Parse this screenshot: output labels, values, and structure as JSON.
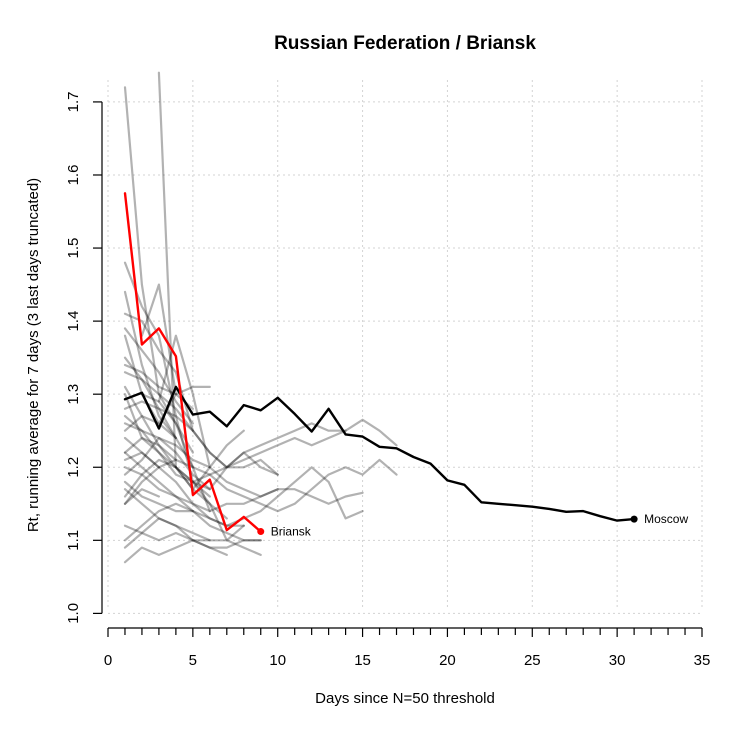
{
  "chart_data": {
    "type": "line",
    "title": "Russian Federation / Briansk",
    "xlabel": "Days since N=50 threshold",
    "ylabel": "Rt, running average for 7 days (3 last days truncated)",
    "xlim": [
      0,
      35
    ],
    "ylim": [
      0.98,
      1.73
    ],
    "x_ticks": [
      "0",
      "5",
      "10",
      "15",
      "20",
      "25",
      "30",
      "35"
    ],
    "y_ticks": [
      "1.0",
      "1.1",
      "1.2",
      "1.3",
      "1.4",
      "1.5",
      "1.6",
      "1.7"
    ],
    "grid": true,
    "highlight_series": [
      {
        "name": "Briansk",
        "color": "#ff0000",
        "x": [
          1,
          2,
          3,
          4,
          5,
          6,
          7,
          8,
          9
        ],
        "y": [
          1.575,
          1.368,
          1.39,
          1.352,
          1.162,
          1.183,
          1.114,
          1.132,
          1.112
        ]
      },
      {
        "name": "Moscow",
        "color": "#000000",
        "x": [
          1,
          2,
          3,
          4,
          5,
          6,
          7,
          8,
          9,
          10,
          11,
          12,
          13,
          14,
          15,
          16,
          17,
          18,
          19,
          20,
          21,
          22,
          23,
          24,
          25,
          26,
          27,
          28,
          29,
          30,
          31
        ],
        "y": [
          1.293,
          1.302,
          1.253,
          1.31,
          1.272,
          1.276,
          1.256,
          1.285,
          1.278,
          1.295,
          1.273,
          1.249,
          1.28,
          1.245,
          1.242,
          1.228,
          1.226,
          1.214,
          1.205,
          1.182,
          1.176,
          1.152,
          1.15,
          1.148,
          1.146,
          1.143,
          1.139,
          1.14,
          1.133,
          1.127,
          1.129
        ]
      }
    ],
    "background_series": [
      {
        "x": [
          1,
          2,
          3,
          4,
          5,
          6
        ],
        "y": [
          1.72,
          1.45,
          1.3,
          1.26,
          1.2,
          1.14
        ]
      },
      {
        "x": [
          3,
          4,
          5,
          6,
          7,
          8
        ],
        "y": [
          1.74,
          1.2,
          1.17,
          1.2,
          1.23,
          1.25
        ]
      },
      {
        "x": [
          1,
          2,
          3,
          4,
          5,
          6,
          7,
          8,
          9
        ],
        "y": [
          1.48,
          1.42,
          1.38,
          1.27,
          1.18,
          1.15,
          1.1,
          1.09,
          1.08
        ]
      },
      {
        "x": [
          1,
          2,
          3,
          4,
          5,
          6,
          7,
          8,
          9,
          10
        ],
        "y": [
          1.41,
          1.4,
          1.36,
          1.33,
          1.25,
          1.22,
          1.2,
          1.2,
          1.21,
          1.19
        ]
      },
      {
        "x": [
          1,
          2,
          3,
          4,
          5,
          6,
          7,
          8,
          9,
          10,
          11,
          12,
          13,
          14,
          15,
          16,
          17
        ],
        "y": [
          1.35,
          1.32,
          1.3,
          1.28,
          1.25,
          1.22,
          1.2,
          1.22,
          1.23,
          1.24,
          1.25,
          1.26,
          1.25,
          1.25,
          1.265,
          1.25,
          1.23
        ]
      },
      {
        "x": [
          1,
          2,
          3,
          4,
          5,
          6
        ],
        "y": [
          1.38,
          1.3,
          1.26,
          1.3,
          1.31,
          1.31
        ]
      },
      {
        "x": [
          1,
          2,
          3,
          4,
          5,
          6,
          7,
          8,
          9,
          10,
          11,
          12,
          13,
          14
        ],
        "y": [
          1.3,
          1.24,
          1.22,
          1.19,
          1.18,
          1.19,
          1.2,
          1.21,
          1.22,
          1.23,
          1.24,
          1.23,
          1.24,
          1.25
        ]
      },
      {
        "x": [
          1,
          2,
          3,
          4,
          5,
          6,
          7,
          8,
          9,
          10
        ],
        "y": [
          1.26,
          1.25,
          1.24,
          1.23,
          1.21,
          1.2,
          1.18,
          1.17,
          1.16,
          1.17
        ]
      },
      {
        "x": [
          1,
          2,
          3,
          4,
          5,
          6,
          7,
          8,
          9,
          10,
          11,
          12,
          13,
          14,
          15
        ],
        "y": [
          1.2,
          1.19,
          1.17,
          1.16,
          1.15,
          1.14,
          1.15,
          1.15,
          1.16,
          1.17,
          1.17,
          1.16,
          1.15,
          1.16,
          1.165
        ]
      },
      {
        "x": [
          1,
          2,
          3,
          4,
          5,
          6,
          7,
          8,
          9,
          10,
          11,
          12,
          13,
          14,
          15
        ],
        "y": [
          1.1,
          1.12,
          1.14,
          1.15,
          1.14,
          1.13,
          1.12,
          1.13,
          1.14,
          1.16,
          1.18,
          1.2,
          1.18,
          1.13,
          1.14
        ]
      },
      {
        "x": [
          1,
          2,
          3,
          4,
          5,
          6,
          7,
          8,
          9,
          10,
          11,
          12,
          13,
          14,
          15,
          16,
          17
        ],
        "y": [
          1.15,
          1.18,
          1.2,
          1.21,
          1.2,
          1.19,
          1.17,
          1.16,
          1.15,
          1.14,
          1.15,
          1.17,
          1.19,
          1.2,
          1.19,
          1.21,
          1.19
        ]
      },
      {
        "x": [
          1,
          2,
          3,
          4,
          5,
          6,
          7,
          8,
          9
        ],
        "y": [
          1.07,
          1.09,
          1.08,
          1.09,
          1.1,
          1.09,
          1.09,
          1.1,
          1.1
        ]
      },
      {
        "x": [
          1,
          2,
          3,
          4,
          5,
          6,
          7,
          8
        ],
        "y": [
          1.17,
          1.15,
          1.13,
          1.12,
          1.11,
          1.1,
          1.1,
          1.12
        ]
      },
      {
        "x": [
          1,
          2,
          3,
          4,
          5,
          6,
          7,
          8,
          9
        ],
        "y": [
          1.22,
          1.2,
          1.18,
          1.16,
          1.14,
          1.12,
          1.11,
          1.1,
          1.1
        ]
      },
      {
        "x": [
          1,
          2,
          3,
          4,
          5,
          6,
          7,
          8
        ],
        "y": [
          1.24,
          1.22,
          1.2,
          1.18,
          1.15,
          1.13,
          1.12,
          1.12
        ]
      },
      {
        "x": [
          1,
          2,
          3,
          4,
          5,
          6,
          7
        ],
        "y": [
          1.31,
          1.27,
          1.23,
          1.2,
          1.17,
          1.15,
          1.13
        ]
      },
      {
        "x": [
          1,
          2,
          3,
          4,
          5,
          6
        ],
        "y": [
          1.16,
          1.19,
          1.21,
          1.2,
          1.18,
          1.16
        ]
      },
      {
        "x": [
          1,
          2,
          3,
          4,
          5,
          6
        ],
        "y": [
          1.12,
          1.11,
          1.1,
          1.11,
          1.1,
          1.1
        ]
      },
      {
        "x": [
          1,
          2,
          3,
          4,
          5,
          6,
          7
        ],
        "y": [
          1.09,
          1.11,
          1.13,
          1.12,
          1.1,
          1.09,
          1.08
        ]
      },
      {
        "x": [
          1,
          2,
          3,
          4,
          5
        ],
        "y": [
          1.44,
          1.34,
          1.27,
          1.24,
          1.2
        ]
      },
      {
        "x": [
          1,
          2,
          3,
          4,
          5
        ],
        "y": [
          1.39,
          1.36,
          1.33,
          1.29,
          1.26
        ]
      },
      {
        "x": [
          1,
          2,
          3,
          4,
          5
        ],
        "y": [
          1.34,
          1.33,
          1.31,
          1.3,
          1.28
        ]
      },
      {
        "x": [
          1,
          2,
          3,
          4,
          5
        ],
        "y": [
          1.28,
          1.29,
          1.28,
          1.27,
          1.25
        ]
      },
      {
        "x": [
          1,
          2,
          3,
          4
        ],
        "y": [
          1.33,
          1.32,
          1.28,
          1.24
        ]
      },
      {
        "x": [
          1,
          2,
          3,
          4
        ],
        "y": [
          1.25,
          1.27,
          1.26,
          1.24
        ]
      },
      {
        "x": [
          1,
          2,
          3,
          4,
          5,
          6
        ],
        "y": [
          1.19,
          1.21,
          1.24,
          1.22,
          1.19,
          1.17
        ]
      },
      {
        "x": [
          1,
          2,
          3,
          4
        ],
        "y": [
          1.22,
          1.24,
          1.23,
          1.21
        ]
      },
      {
        "x": [
          1,
          2,
          3,
          4
        ],
        "y": [
          1.27,
          1.25,
          1.22,
          1.2
        ]
      },
      {
        "x": [
          1,
          2,
          3
        ],
        "y": [
          1.21,
          1.22,
          1.2
        ]
      },
      {
        "x": [
          2,
          3,
          4
        ],
        "y": [
          1.38,
          1.45,
          1.3
        ]
      },
      {
        "x": [
          1,
          2,
          3,
          4,
          5
        ],
        "y": [
          1.18,
          1.16,
          1.15,
          1.14,
          1.14
        ]
      },
      {
        "x": [
          2,
          3,
          4,
          5
        ],
        "y": [
          1.3,
          1.29,
          1.26,
          1.22
        ]
      },
      {
        "x": [
          1,
          2,
          3
        ],
        "y": [
          1.15,
          1.17,
          1.16
        ]
      },
      {
        "x": [
          3,
          4,
          5,
          6
        ],
        "y": [
          1.29,
          1.38,
          1.3,
          1.2
        ]
      },
      {
        "x": [
          4,
          5,
          6,
          7,
          8,
          9,
          10
        ],
        "y": [
          1.2,
          1.18,
          1.17,
          1.2,
          1.22,
          1.2,
          1.19
        ]
      }
    ]
  }
}
